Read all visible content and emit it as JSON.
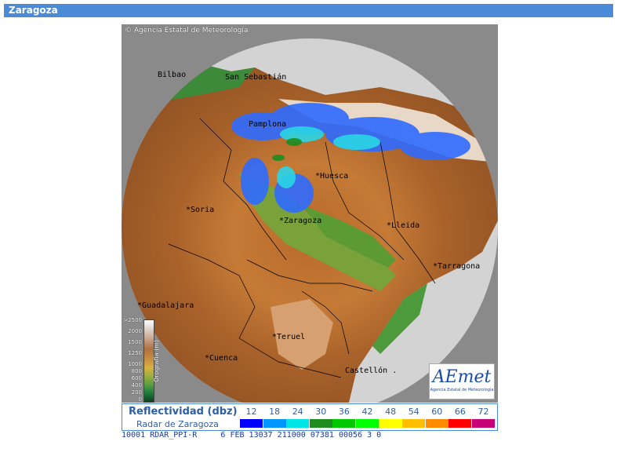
{
  "window": {
    "title": "Zaragoza"
  },
  "map": {
    "copyright": "Agencia Estatal de Meteorología",
    "cities": [
      {
        "id": "bilbao",
        "label": "Bilbao"
      },
      {
        "id": "san-sebastian",
        "label": "San Sebastián"
      },
      {
        "id": "pamplona",
        "label": "Pamplona"
      },
      {
        "id": "huesca",
        "label": "*Huesca"
      },
      {
        "id": "soria",
        "label": "*Soria"
      },
      {
        "id": "zaragoza",
        "label": "*Zaragoza"
      },
      {
        "id": "lleida",
        "label": "*Lleida"
      },
      {
        "id": "tarragona",
        "label": "*Tarragona"
      },
      {
        "id": "guadalajara",
        "label": "*Guadalajara"
      },
      {
        "id": "teruel",
        "label": "*Teruel"
      },
      {
        "id": "cuenca",
        "label": "*Cuenca"
      },
      {
        "id": "castellon",
        "label": "Castellón ."
      }
    ],
    "orography_legend": {
      "title": "Orografía (m)",
      "levels": [
        ">2500",
        "2000",
        "1500",
        "1250",
        "1000",
        "800",
        "600",
        "400",
        "200",
        "0"
      ]
    },
    "logo": {
      "name": "AEmet",
      "subtitle": "Agencia Estatal de Meteorología"
    }
  },
  "legend": {
    "title": "Reflectividad (dbz)",
    "subtitle": "Radar de Zaragoza",
    "scale": [
      {
        "value": "12",
        "color": "#0000ff"
      },
      {
        "value": "18",
        "color": "#0096ff"
      },
      {
        "value": "24",
        "color": "#00e6e6"
      },
      {
        "value": "30",
        "color": "#1e8c1e"
      },
      {
        "value": "36",
        "color": "#00c800"
      },
      {
        "value": "42",
        "color": "#00ff00"
      },
      {
        "value": "48",
        "color": "#ffff00"
      },
      {
        "value": "54",
        "color": "#ffbe00"
      },
      {
        "value": "60",
        "color": "#ff8c00"
      },
      {
        "value": "66",
        "color": "#ff0000"
      },
      {
        "value": "72",
        "color": "#c80078"
      }
    ]
  },
  "status": {
    "text": "10001 RDAR_PPI-R     6 FEB 13037 211000 07381 00056 3 0"
  }
}
